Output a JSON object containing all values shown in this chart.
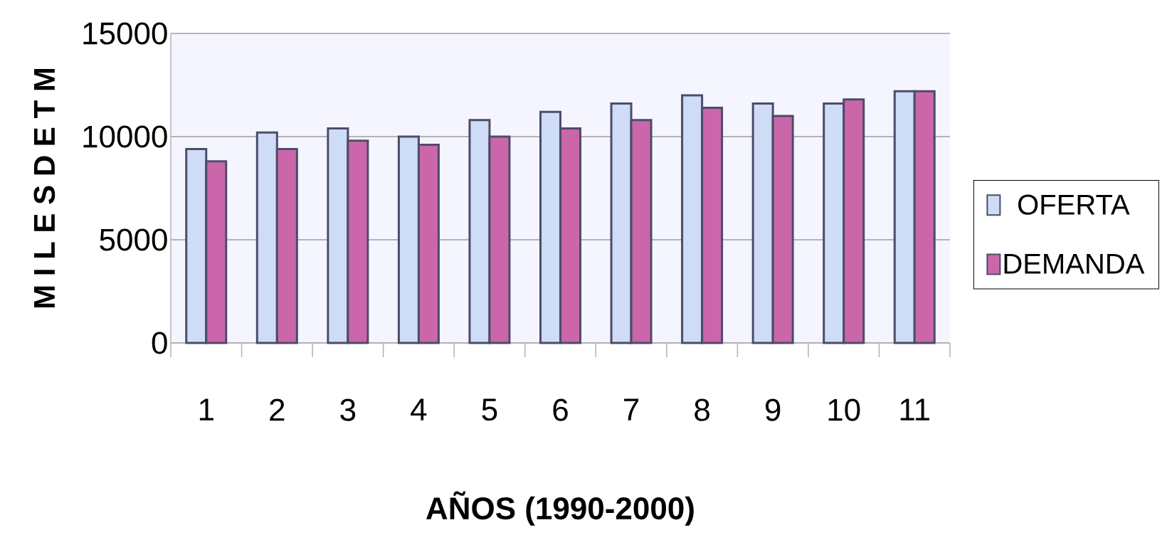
{
  "chart_data": {
    "type": "bar",
    "xlabel": "AÑOS (1990-2000)",
    "ylabel": "M I L E S D E T M",
    "categories": [
      "1",
      "2",
      "3",
      "4",
      "5",
      "6",
      "7",
      "8",
      "9",
      "10",
      "11"
    ],
    "series": [
      {
        "name": "OFERTA",
        "color": "#cfdcf6",
        "values": [
          9400,
          10200,
          10400,
          10000,
          10800,
          11200,
          11600,
          12000,
          11600,
          11600,
          12200
        ]
      },
      {
        "name": "DEMANDA",
        "color": "#cc66aa",
        "values": [
          8800,
          9400,
          9800,
          9600,
          10000,
          10400,
          10800,
          11400,
          11000,
          11800,
          12200
        ]
      }
    ],
    "ylim": [
      0,
      15000
    ],
    "yticks": [
      0,
      5000,
      10000,
      15000
    ],
    "grid": "y",
    "legend": "right"
  }
}
